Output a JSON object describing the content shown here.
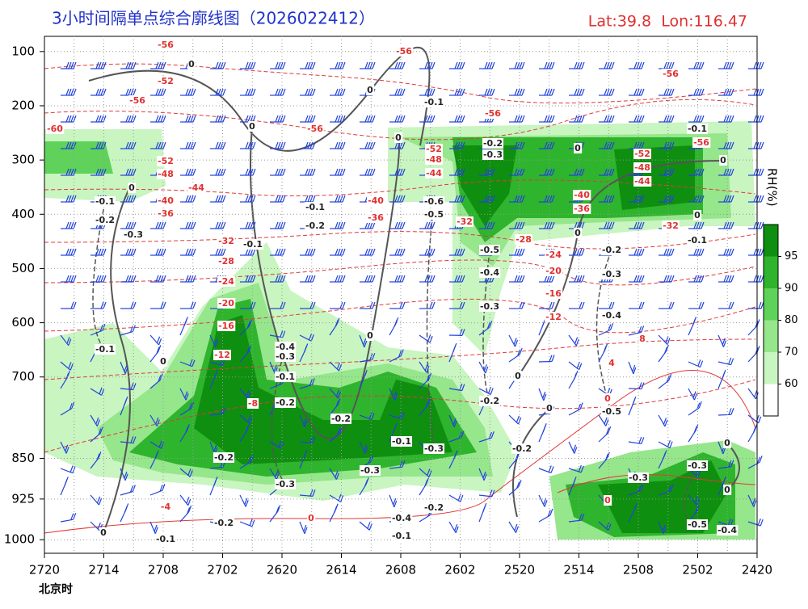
{
  "chart_data": {
    "type": "contour",
    "title": "3小时间隔单点综合廓线图（2026022412）",
    "location": "Lat:39.8  Lon:116.47",
    "x_label": "北京时",
    "categories": [
      "2720",
      "2714",
      "2708",
      "2702",
      "2620",
      "2614",
      "2608",
      "2602",
      "2520",
      "2514",
      "2508",
      "2502",
      "2420"
    ],
    "ylim": [
      1025,
      72
    ],
    "yticks": [
      100,
      200,
      300,
      400,
      500,
      600,
      700,
      850,
      925,
      1000
    ],
    "colorbar": {
      "label": "RH(%)",
      "ticks": [
        60,
        70,
        80,
        90,
        95
      ],
      "colors": [
        "#ffffff",
        "#c8f5c0",
        "#96e68c",
        "#5fd25a",
        "#2fb42d",
        "#0f8f0f"
      ]
    },
    "temperature_labels": [
      -56,
      -56,
      -56,
      -52,
      -56,
      -56,
      -60,
      -56,
      -56,
      -52,
      -48,
      -44,
      -40,
      -36,
      -32,
      -28,
      -24,
      -20,
      -16,
      -12,
      -8,
      -4,
      0,
      0,
      0,
      4,
      8,
      -12,
      -16,
      -20,
      -24,
      -28,
      -32,
      -36,
      -40,
      -44,
      -48,
      -52,
      -40,
      -36,
      -52,
      -48,
      -44,
      -32
    ],
    "omega_labels": [
      0,
      0,
      0,
      -0.1,
      -0.2,
      -0.3,
      0,
      0,
      -0.1,
      0,
      0,
      -0.1,
      -0.2,
      -0.3,
      -0.1,
      -0.2,
      -0.1,
      -0.6,
      -0.5,
      0,
      -0.1,
      0,
      -0.2,
      -0.3,
      -0.5,
      -0.4,
      -0.3,
      -0.4,
      0,
      0,
      -0.1,
      -0.4,
      -0.3,
      -0.1,
      0,
      -0.2,
      -0.2,
      -0.2,
      0,
      -0.5,
      -0.1,
      -0.3,
      -0.2,
      0,
      -0.2,
      -0.3,
      -0.3,
      -0.3,
      -0.3,
      0,
      0,
      -0.1,
      -0.2,
      -0.2,
      -0.4,
      -0.1,
      -0.5,
      -0.4
    ]
  }
}
